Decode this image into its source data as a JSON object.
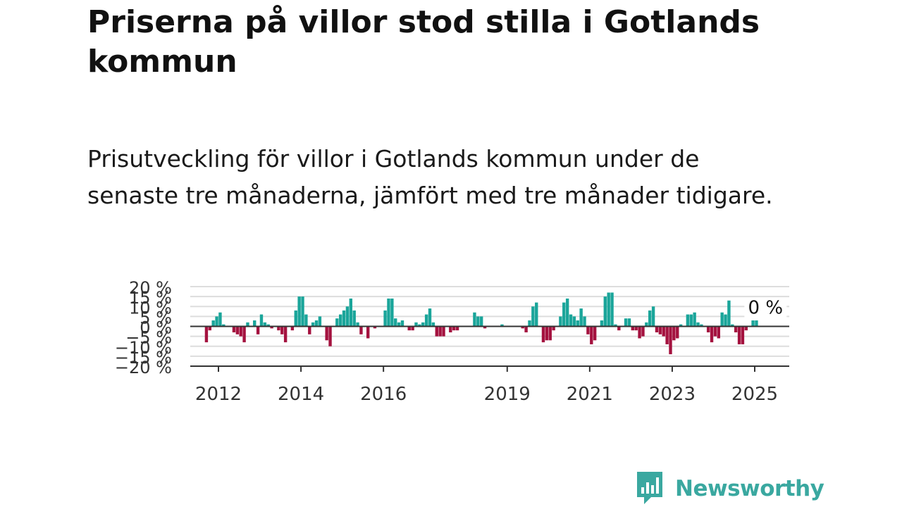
{
  "title": "Priserna på villor stod stilla i Gotlands kommun",
  "subtitle": "Prisutveckling för villor i Gotlands kommun under de senaste tre månaderna, jämfört med tre månader tidigare.",
  "brand": {
    "name": "Newsworthy",
    "color": "#3aa8a0",
    "icon": "newsworthy-bar-chart-icon"
  },
  "colors": {
    "positive": "#1aa59a",
    "negative": "#a4123f",
    "grid": "#dddddd",
    "zero_line": "#333333"
  },
  "chart_data": {
    "type": "bar",
    "title": "",
    "xlabel": "",
    "ylabel": "",
    "ylim": [
      -20,
      20
    ],
    "y_ticks": [
      {
        "value": 20,
        "label": "20 %"
      },
      {
        "value": 15,
        "label": "15 %"
      },
      {
        "value": 10,
        "label": "10 %"
      },
      {
        "value": 5,
        "label": "5 %"
      },
      {
        "value": 0,
        "label": "0 %"
      },
      {
        "value": -5,
        "label": "−5 %"
      },
      {
        "value": -10,
        "label": "−10 %"
      },
      {
        "value": -15,
        "label": "−15 %"
      },
      {
        "value": -20,
        "label": "−20 %"
      }
    ],
    "x_ticks": [
      {
        "year": 2012,
        "label": "2012"
      },
      {
        "year": 2014,
        "label": "2014"
      },
      {
        "year": 2016,
        "label": "2016"
      },
      {
        "year": 2019,
        "label": "2019"
      },
      {
        "year": 2021,
        "label": "2021"
      },
      {
        "year": 2023,
        "label": "2023"
      },
      {
        "year": 2025,
        "label": "2025"
      }
    ],
    "grid": true,
    "start_month": "2011-09",
    "values": [
      -8,
      -2,
      3,
      5,
      7,
      1,
      0,
      0,
      -3,
      -4,
      -5,
      -8,
      2,
      0,
      3,
      -4,
      6,
      2,
      1,
      -1,
      0,
      -2,
      -4,
      -8,
      0,
      -2,
      8,
      15,
      15,
      6,
      -4,
      2,
      3,
      5,
      0,
      -7,
      -10,
      0,
      4,
      6,
      8,
      10,
      14,
      8,
      2,
      -4,
      0,
      -6,
      0,
      -1,
      0,
      0,
      8,
      14,
      14,
      4,
      2,
      3,
      0,
      -2,
      -2,
      2,
      1,
      2,
      6,
      9,
      2,
      -5,
      -5,
      -5,
      0,
      -3,
      -2,
      -2,
      0,
      0,
      0,
      0,
      7,
      5,
      5,
      -1,
      0,
      0,
      0,
      0,
      1,
      0,
      0,
      0,
      0,
      0,
      -1,
      -3,
      3,
      10,
      12,
      0,
      -8,
      -7,
      -7,
      -2,
      0,
      5,
      12,
      14,
      6,
      5,
      3,
      9,
      5,
      -4,
      -9,
      -7,
      0,
      3,
      15,
      17,
      17,
      1,
      -2,
      0,
      4,
      4,
      -2,
      -2,
      -6,
      -5,
      2,
      8,
      10,
      -3,
      -4,
      -5,
      -9,
      -14,
      -7,
      -6,
      1,
      0,
      6,
      6,
      7,
      2,
      1,
      0,
      -3,
      -8,
      -5,
      -6,
      7,
      6,
      13,
      1,
      -3,
      -9,
      -9,
      -2,
      0,
      3,
      3,
      0
    ]
  }
}
